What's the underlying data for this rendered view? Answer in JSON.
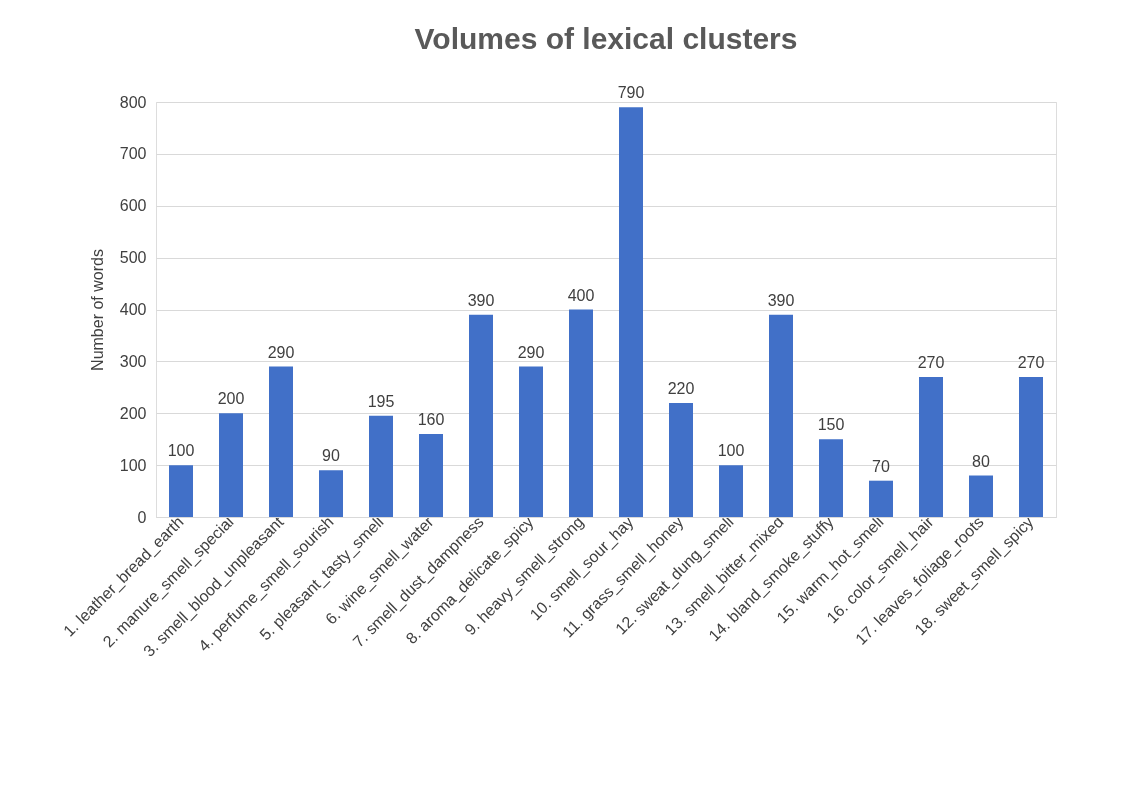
{
  "chart_data": {
    "type": "bar",
    "title": "Volumes of lexical clusters",
    "ylabel": "Number of words",
    "categories": [
      "1. leather_bread_earth",
      "2. manure_smell_special",
      "3. smell_blood_unpleasant",
      "4. perfume_smell_sourish",
      "5. pleasant_tasty_smell",
      "6. wine_smell_water",
      "7. smell_dust_dampness",
      "8. aroma_delicate_spicy",
      "9. heavy_smell_strong",
      "10. smell_sour_hay",
      "11. grass_smell_honey",
      "12. sweat_dung_smell",
      "13. smell_bitter_mixed",
      "14. bland_smoke_stuffy",
      "15. warm_hot_smell",
      "16. color_smell_hair",
      "17. leaves_foliage_roots",
      "18. sweet_smell_spicy"
    ],
    "values": [
      100,
      200,
      290,
      90,
      195,
      160,
      390,
      290,
      400,
      790,
      220,
      100,
      390,
      150,
      70,
      270,
      80,
      270
    ],
    "color": "#4170c8",
    "ylim": [
      0,
      800
    ],
    "yticks": [
      0,
      100,
      200,
      300,
      400,
      500,
      600,
      700,
      800
    ],
    "grid": "y",
    "data_labels": true
  }
}
